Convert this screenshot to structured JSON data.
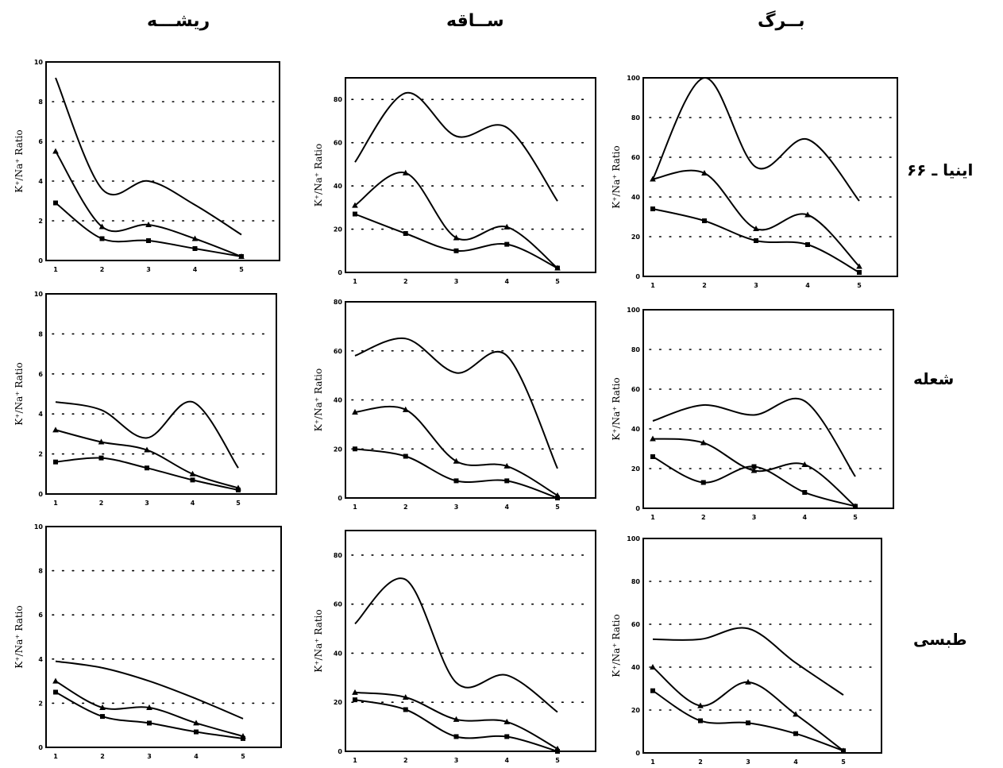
{
  "columns": [
    {
      "id": "root",
      "title": "ریشـــه"
    },
    {
      "id": "stem",
      "title": "ســاقه"
    },
    {
      "id": "leaf",
      "title": "بــرگ"
    }
  ],
  "rows": [
    {
      "id": "inia",
      "label": "اینیا ـ ۶۶"
    },
    {
      "id": "shoaleh",
      "label": "شعله"
    },
    {
      "id": "tabasi",
      "label": "طبسی"
    }
  ],
  "chart_data": [
    {
      "type": "line",
      "column": "root",
      "row": "inia",
      "ylabel": "K⁺/Na⁺ Ratio",
      "ylim": [
        0,
        10
      ],
      "yticks": [
        0,
        2,
        4,
        6,
        8,
        10
      ],
      "x": [
        1,
        2,
        3,
        4,
        5
      ],
      "grid": "dotted",
      "series": [
        {
          "values": [
            9.2,
            3.6,
            4.0,
            2.8,
            1.3
          ],
          "marker": "none"
        },
        {
          "values": [
            5.5,
            1.7,
            1.8,
            1.1,
            0.2
          ],
          "marker": "triangle"
        },
        {
          "values": [
            2.9,
            1.1,
            1.0,
            0.6,
            0.2
          ],
          "marker": "square"
        }
      ]
    },
    {
      "type": "line",
      "column": "stem",
      "row": "inia",
      "ylabel": "K⁺/Na⁺ Ratio",
      "ylim": [
        0,
        90
      ],
      "yticks": [
        0,
        20,
        40,
        60,
        80
      ],
      "x": [
        1,
        2,
        3,
        4,
        5
      ],
      "grid": "dotted",
      "series": [
        {
          "values": [
            51,
            83,
            63,
            67,
            33
          ],
          "marker": "none"
        },
        {
          "values": [
            31,
            46,
            16,
            21,
            2
          ],
          "marker": "triangle"
        },
        {
          "values": [
            27,
            18,
            10,
            13,
            2
          ],
          "marker": "square"
        }
      ]
    },
    {
      "type": "line",
      "column": "leaf",
      "row": "inia",
      "ylabel": "K⁺/Na⁺ Ratio",
      "ylim": [
        0,
        100
      ],
      "yticks": [
        0,
        20,
        40,
        60,
        80,
        100
      ],
      "x": [
        1,
        2,
        3,
        4,
        5
      ],
      "grid": "dotted",
      "series": [
        {
          "values": [
            49,
            100,
            55,
            69,
            38
          ],
          "marker": "none"
        },
        {
          "values": [
            49,
            52,
            24,
            31,
            5
          ],
          "marker": "triangle"
        },
        {
          "values": [
            34,
            28,
            18,
            16,
            2
          ],
          "marker": "square"
        }
      ]
    },
    {
      "type": "line",
      "column": "root",
      "row": "shoaleh",
      "ylabel": "K⁺/Na⁺ Ratio",
      "ylim": [
        0,
        10
      ],
      "yticks": [
        0,
        2,
        4,
        6,
        8,
        10
      ],
      "x": [
        1,
        2,
        3,
        4,
        5
      ],
      "grid": "dotted",
      "series": [
        {
          "values": [
            4.6,
            4.2,
            2.8,
            4.6,
            1.3
          ],
          "marker": "none"
        },
        {
          "values": [
            3.2,
            2.6,
            2.2,
            1.0,
            0.3
          ],
          "marker": "triangle"
        },
        {
          "values": [
            1.6,
            1.8,
            1.3,
            0.7,
            0.2
          ],
          "marker": "square"
        }
      ]
    },
    {
      "type": "line",
      "column": "stem",
      "row": "shoaleh",
      "ylabel": "K⁺/Na⁺ Ratio",
      "ylim": [
        0,
        80
      ],
      "yticks": [
        0,
        20,
        40,
        60,
        80
      ],
      "x": [
        1,
        2,
        3,
        4,
        5
      ],
      "grid": "dotted",
      "series": [
        {
          "values": [
            58,
            65,
            51,
            58,
            12
          ],
          "marker": "none"
        },
        {
          "values": [
            35,
            36,
            15,
            13,
            1
          ],
          "marker": "triangle"
        },
        {
          "values": [
            20,
            17,
            7,
            7,
            0
          ],
          "marker": "square"
        }
      ]
    },
    {
      "type": "line",
      "column": "leaf",
      "row": "shoaleh",
      "ylabel": "K⁺/Na⁺ Ratio",
      "ylim": [
        0,
        100
      ],
      "yticks": [
        0,
        20,
        40,
        60,
        80,
        100
      ],
      "x": [
        1,
        2,
        3,
        4,
        5
      ],
      "grid": "dotted",
      "series": [
        {
          "values": [
            44,
            52,
            47,
            54,
            16
          ],
          "marker": "none"
        },
        {
          "values": [
            35,
            33,
            19,
            22,
            1
          ],
          "marker": "triangle"
        },
        {
          "values": [
            26,
            13,
            21,
            8,
            1
          ],
          "marker": "square"
        }
      ]
    },
    {
      "type": "line",
      "column": "root",
      "row": "tabasi",
      "ylabel": "K⁺/Na⁺ Ratio",
      "ylim": [
        0,
        10
      ],
      "yticks": [
        0,
        2,
        4,
        6,
        8,
        10
      ],
      "x": [
        1,
        2,
        3,
        4,
        5
      ],
      "grid": "dotted",
      "series": [
        {
          "values": [
            3.9,
            3.6,
            3.0,
            2.2,
            1.3
          ],
          "marker": "none"
        },
        {
          "values": [
            3.0,
            1.8,
            1.8,
            1.1,
            0.5
          ],
          "marker": "triangle"
        },
        {
          "values": [
            2.5,
            1.4,
            1.1,
            0.7,
            0.4
          ],
          "marker": "square"
        }
      ]
    },
    {
      "type": "line",
      "column": "stem",
      "row": "tabasi",
      "ylabel": "K⁺/Na⁺ Ratio",
      "ylim": [
        0,
        90
      ],
      "yticks": [
        0,
        20,
        40,
        60,
        80
      ],
      "x": [
        1,
        2,
        3,
        4,
        5
      ],
      "grid": "dotted",
      "series": [
        {
          "values": [
            52,
            70,
            28,
            31,
            16
          ],
          "marker": "none"
        },
        {
          "values": [
            24,
            22,
            13,
            12,
            1
          ],
          "marker": "triangle"
        },
        {
          "values": [
            21,
            17,
            6,
            6,
            0
          ],
          "marker": "square"
        }
      ]
    },
    {
      "type": "line",
      "column": "leaf",
      "row": "tabasi",
      "ylabel": "K⁺/Na⁺ Ratio",
      "ylim": [
        0,
        100
      ],
      "yticks": [
        0,
        20,
        40,
        60,
        80,
        100
      ],
      "x": [
        1,
        2,
        3,
        4,
        5
      ],
      "grid": "dotted",
      "series": [
        {
          "values": [
            53,
            53,
            58,
            42,
            27
          ],
          "marker": "none"
        },
        {
          "values": [
            40,
            22,
            33,
            18,
            1
          ],
          "marker": "triangle"
        },
        {
          "values": [
            29,
            15,
            14,
            9,
            1
          ],
          "marker": "square"
        }
      ]
    }
  ]
}
